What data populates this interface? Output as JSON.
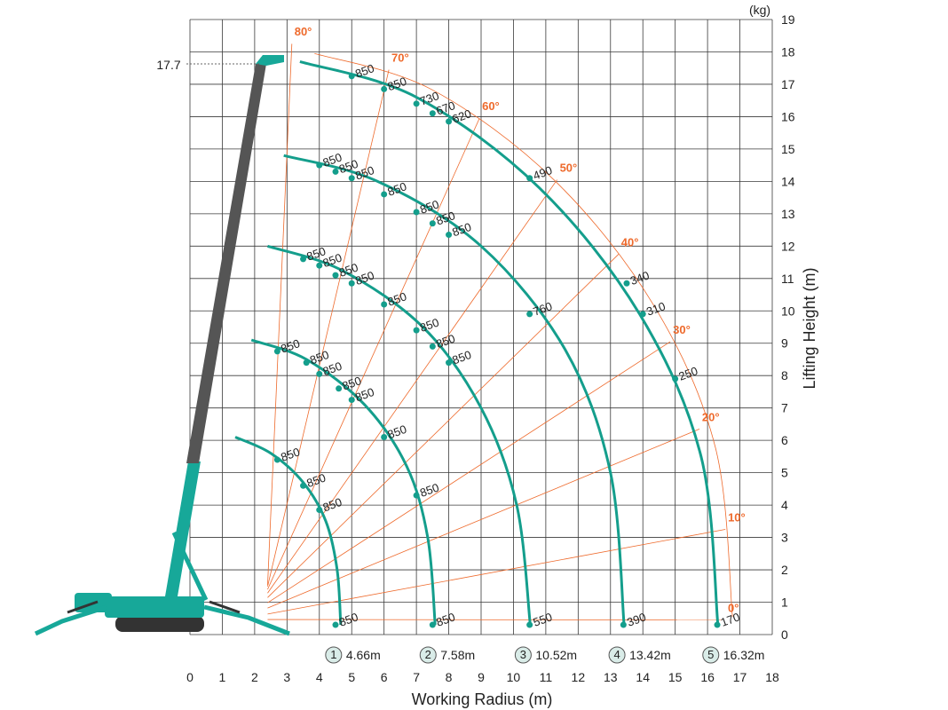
{
  "chart_data": {
    "type": "line",
    "title": "",
    "xlabel": "Working Radius (m)",
    "ylabel": "Lifting Height (m)",
    "unit_label": "(kg)",
    "xlim": [
      0,
      18
    ],
    "ylim": [
      0,
      19
    ],
    "x_ticks": [
      "0",
      "1",
      "2",
      "3",
      "4",
      "5",
      "6",
      "7",
      "8",
      "9",
      "10",
      "11",
      "12",
      "13",
      "14",
      "15",
      "16",
      "17",
      "18"
    ],
    "y_ticks": [
      "0",
      "1",
      "2",
      "3",
      "4",
      "5",
      "6",
      "7",
      "8",
      "9",
      "10",
      "11",
      "12",
      "13",
      "14",
      "15",
      "16",
      "17",
      "18",
      "19"
    ],
    "grid": true,
    "max_height_label": "17.7",
    "max_height": 17.7,
    "angles": [
      {
        "label": "0°",
        "x": 16.8,
        "y": 0.7
      },
      {
        "label": "10°",
        "x": 16.9,
        "y": 3.5
      },
      {
        "label": "20°",
        "x": 16.1,
        "y": 6.6
      },
      {
        "label": "30°",
        "x": 15.2,
        "y": 9.3
      },
      {
        "label": "40°",
        "x": 13.6,
        "y": 12.0
      },
      {
        "label": "50°",
        "x": 11.7,
        "y": 14.3
      },
      {
        "label": "60°",
        "x": 9.3,
        "y": 16.2
      },
      {
        "label": "70°",
        "x": 6.5,
        "y": 17.7
      },
      {
        "label": "80°",
        "x": 3.5,
        "y": 18.5
      }
    ],
    "series": [
      {
        "name": "4.66m",
        "index": "1",
        "max_radius": 4.66,
        "curve": [
          [
            1.4,
            6.1
          ],
          [
            2.5,
            5.6
          ],
          [
            3.5,
            4.7
          ],
          [
            4.2,
            3.5
          ],
          [
            4.55,
            2.0
          ],
          [
            4.66,
            0.3
          ]
        ],
        "points": [
          {
            "x": 2.7,
            "y": 5.4,
            "load": "850"
          },
          {
            "x": 3.5,
            "y": 4.6,
            "load": "850"
          },
          {
            "x": 4.0,
            "y": 3.85,
            "load": "850"
          },
          {
            "x": 4.5,
            "y": 0.3,
            "load": "850"
          }
        ]
      },
      {
        "name": "7.58m",
        "index": "2",
        "max_radius": 7.58,
        "curve": [
          [
            1.9,
            9.1
          ],
          [
            3.6,
            8.5
          ],
          [
            5.4,
            7.1
          ],
          [
            6.7,
            5.2
          ],
          [
            7.35,
            3.0
          ],
          [
            7.58,
            0.3
          ]
        ],
        "points": [
          {
            "x": 2.7,
            "y": 8.75,
            "load": "850"
          },
          {
            "x": 3.6,
            "y": 8.4,
            "load": "850"
          },
          {
            "x": 4.0,
            "y": 8.05,
            "load": "850"
          },
          {
            "x": 4.6,
            "y": 7.6,
            "load": "850"
          },
          {
            "x": 5.0,
            "y": 7.25,
            "load": "850"
          },
          {
            "x": 6.0,
            "y": 6.1,
            "load": "850"
          },
          {
            "x": 7.0,
            "y": 4.3,
            "load": "850"
          },
          {
            "x": 7.5,
            "y": 0.3,
            "load": "850"
          }
        ]
      },
      {
        "name": "10.52m",
        "index": "3",
        "max_radius": 10.52,
        "curve": [
          [
            2.4,
            12.0
          ],
          [
            4.7,
            11.25
          ],
          [
            7.2,
            9.5
          ],
          [
            9.0,
            7.0
          ],
          [
            10.1,
            4.0
          ],
          [
            10.52,
            0.3
          ]
        ],
        "points": [
          {
            "x": 3.5,
            "y": 11.6,
            "load": "850"
          },
          {
            "x": 4.0,
            "y": 11.4,
            "load": "850"
          },
          {
            "x": 4.5,
            "y": 11.1,
            "load": "850"
          },
          {
            "x": 5.0,
            "y": 10.85,
            "load": "850"
          },
          {
            "x": 6.0,
            "y": 10.2,
            "load": "850"
          },
          {
            "x": 7.0,
            "y": 9.4,
            "load": "850"
          },
          {
            "x": 7.5,
            "y": 8.9,
            "load": "850"
          },
          {
            "x": 8.0,
            "y": 8.4,
            "load": "850"
          },
          {
            "x": 10.5,
            "y": 0.3,
            "load": "550"
          }
        ]
      },
      {
        "name": "13.42m",
        "index": "4",
        "max_radius": 13.42,
        "curve": [
          [
            2.9,
            14.8
          ],
          [
            5.8,
            14.0
          ],
          [
            9.0,
            12.0
          ],
          [
            11.6,
            8.8
          ],
          [
            13.0,
            5.0
          ],
          [
            13.42,
            0.3
          ]
        ],
        "points": [
          {
            "x": 4.0,
            "y": 14.5,
            "load": "850"
          },
          {
            "x": 4.5,
            "y": 14.3,
            "load": "850"
          },
          {
            "x": 5.0,
            "y": 14.1,
            "load": "850"
          },
          {
            "x": 6.0,
            "y": 13.6,
            "load": "850"
          },
          {
            "x": 7.0,
            "y": 13.05,
            "load": "850"
          },
          {
            "x": 7.5,
            "y": 12.7,
            "load": "850"
          },
          {
            "x": 8.0,
            "y": 12.35,
            "load": "850"
          },
          {
            "x": 10.5,
            "y": 9.9,
            "load": "760"
          },
          {
            "x": 13.4,
            "y": 0.3,
            "load": "390"
          }
        ]
      },
      {
        "name": "16.32m",
        "index": "5",
        "max_radius": 16.32,
        "curve": [
          [
            3.4,
            17.7
          ],
          [
            7.0,
            16.6
          ],
          [
            10.8,
            13.8
          ],
          [
            13.9,
            9.9
          ],
          [
            15.8,
            5.5
          ],
          [
            16.32,
            0.3
          ]
        ],
        "points": [
          {
            "x": 5.0,
            "y": 17.25,
            "load": "850"
          },
          {
            "x": 6.0,
            "y": 16.85,
            "load": "850"
          },
          {
            "x": 7.0,
            "y": 16.4,
            "load": "730"
          },
          {
            "x": 7.5,
            "y": 16.1,
            "load": "670"
          },
          {
            "x": 8.0,
            "y": 15.85,
            "load": "620"
          },
          {
            "x": 10.5,
            "y": 14.1,
            "load": "490"
          },
          {
            "x": 13.5,
            "y": 10.85,
            "load": "340"
          },
          {
            "x": 14.0,
            "y": 9.9,
            "load": "310"
          },
          {
            "x": 15.0,
            "y": 7.9,
            "load": "250"
          },
          {
            "x": 16.3,
            "y": 0.3,
            "load": "170"
          }
        ]
      }
    ],
    "colors": {
      "curve": "#149e8c",
      "angle": "#ee6a2c",
      "grid": "#3a3a3a",
      "boom": "#5a5a5a",
      "machine": "#17a899"
    }
  }
}
